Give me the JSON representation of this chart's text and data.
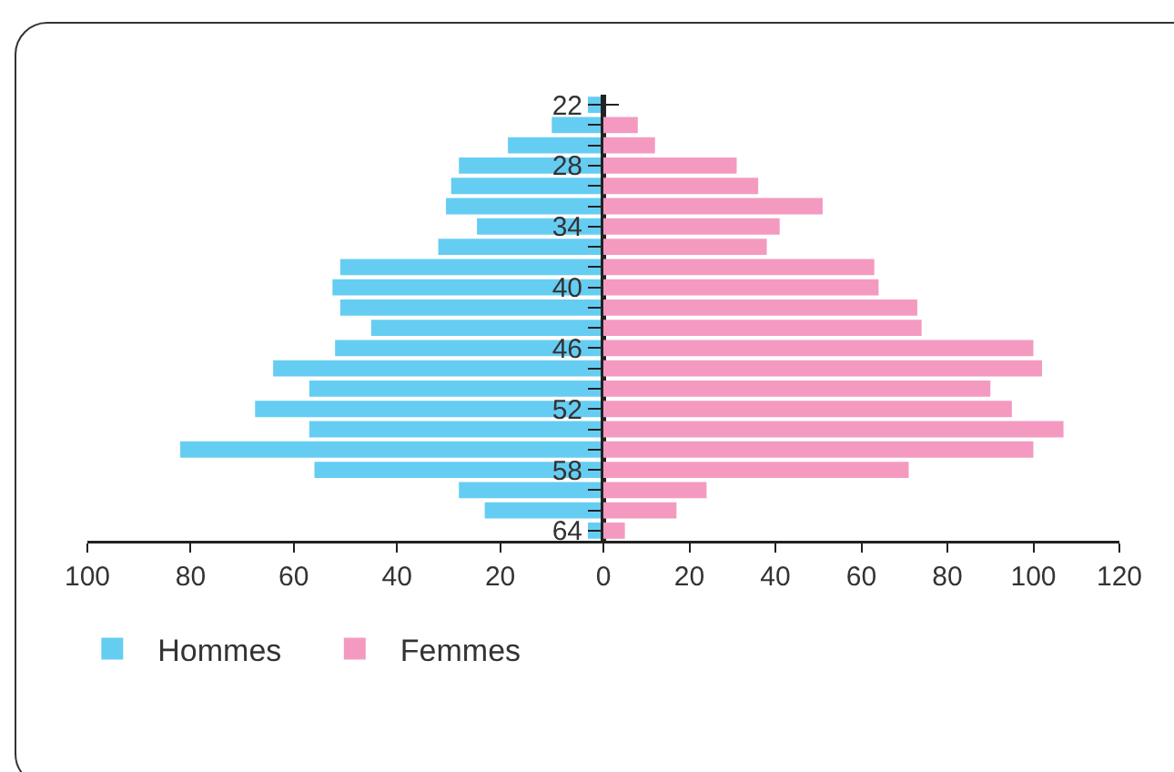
{
  "chart_data": [
    {
      "type": "bar",
      "orientation": "horizontal",
      "categories": [
        "22",
        null,
        null,
        "28",
        null,
        null,
        "34",
        null,
        null,
        "40",
        null,
        null,
        "46",
        null,
        null,
        "52",
        null,
        null,
        "58",
        null,
        null,
        "64"
      ],
      "series": [
        {
          "name": "Hommes",
          "color": "#66cdf2",
          "values": [
            3,
            10,
            18.5,
            28,
            29.5,
            30.5,
            24.5,
            32,
            51,
            52.5,
            51,
            45,
            52,
            64,
            57,
            67.5,
            57,
            82,
            56,
            28,
            23,
            3
          ]
        }
      ],
      "xlim": [
        100,
        0
      ],
      "xticks": [
        100,
        80,
        60,
        40,
        20,
        {
          "value": 0,
          "label": null
        }
      ],
      "tick_labels": "x",
      "legend": "bottom left"
    },
    {
      "type": "bar",
      "orientation": "horizontal",
      "categories": [
        "22",
        null,
        null,
        "28",
        null,
        null,
        "34",
        null,
        null,
        "40",
        null,
        null,
        "46",
        null,
        null,
        "52",
        null,
        null,
        "58",
        null,
        null,
        "64"
      ],
      "series": [
        {
          "name": "Femmes",
          "color": "#f49ac1",
          "values": [
            0,
            8,
            12,
            31,
            36,
            51,
            41,
            38,
            63,
            64,
            73,
            74,
            100,
            102,
            90,
            95,
            107,
            100,
            71,
            24,
            17,
            5
          ]
        }
      ],
      "xlim": [
        0,
        120
      ],
      "xticks": [
        0,
        20,
        40,
        60,
        80,
        100,
        120
      ],
      "legend": "bottom left"
    }
  ]
}
